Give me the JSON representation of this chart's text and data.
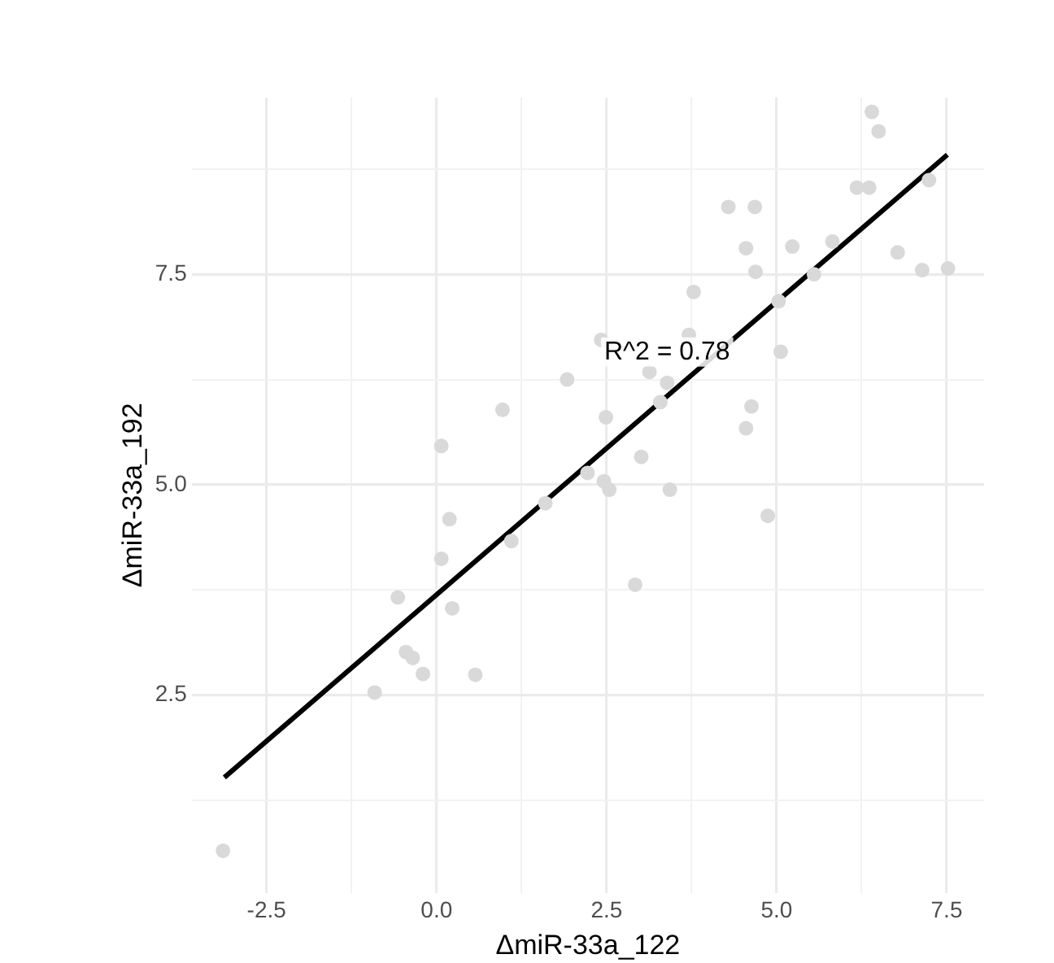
{
  "chart_data": {
    "type": "scatter",
    "xlabel": "ΔmiR-33a_122",
    "ylabel": "ΔmiR-33a_192",
    "xlim": [
      -3.6,
      8.05
    ],
    "ylim": [
      0.15,
      9.6
    ],
    "xticks": [
      -2.5,
      {
        "value": -1.25,
        "label": null
      },
      {
        "value": 0,
        "label": "0.0"
      },
      {
        "value": 1.25,
        "label": null
      },
      2.5,
      {
        "value": 3.75,
        "label": null
      },
      {
        "value": 5,
        "label": "5.0"
      },
      {
        "value": 6.25,
        "label": null
      },
      7.5
    ],
    "yticks": [
      {
        "value": 1.25,
        "label": null
      },
      2.5,
      {
        "value": 3.75,
        "label": null
      },
      {
        "value": 5,
        "label": "5.0"
      },
      {
        "value": 6.25,
        "label": null
      },
      7.5,
      {
        "value": 8.75,
        "label": null
      }
    ],
    "grid": true,
    "legend": false,
    "marker": "circle",
    "annotations": [
      "R^2 = 0.78"
    ],
    "series": [
      {
        "type": "scatter",
        "color": "#d9d9d9",
        "x": [
          6.4,
          6.5,
          6.18,
          6.36,
          7.24,
          4.29,
          4.68,
          4.55,
          5.23,
          5.82,
          4.69,
          6.78,
          7.14,
          7.52,
          5.55,
          3.78,
          5.03,
          3.71,
          2.42,
          5.06,
          3.13,
          3.39,
          3.29,
          4.63,
          4.55,
          2.49,
          3.01,
          2.22,
          2.46,
          2.54,
          3.43,
          4.87,
          2.92,
          0.07,
          0.97,
          1.92,
          0.19,
          1.1,
          1.6,
          0.07,
          -0.57,
          0.23,
          -0.45,
          -0.35,
          -0.2,
          0.57,
          -0.91,
          -3.14
        ],
        "values": [
          9.43,
          9.2,
          8.53,
          8.53,
          8.62,
          8.3,
          8.3,
          7.81,
          7.83,
          7.89,
          7.53,
          7.76,
          7.55,
          7.57,
          7.5,
          7.29,
          7.18,
          6.78,
          6.72,
          6.58,
          6.34,
          6.21,
          5.98,
          5.93,
          5.67,
          5.8,
          5.33,
          5.14,
          5.04,
          4.94,
          4.94,
          4.63,
          3.81,
          5.46,
          5.89,
          6.25,
          4.59,
          4.33,
          4.78,
          4.12,
          3.66,
          3.53,
          3.01,
          2.94,
          2.75,
          2.74,
          2.53,
          0.65
        ]
      },
      {
        "type": "line",
        "color": "#000000",
        "x": [
          -3.12,
          7.51
        ],
        "values": [
          1.52,
          8.92
        ],
        "marker": "none",
        "line_style": "solid"
      }
    ]
  }
}
